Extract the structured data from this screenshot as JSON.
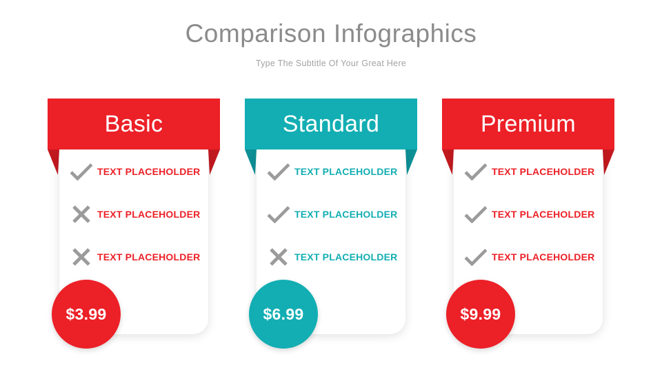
{
  "header": {
    "title": "Comparison Infographics",
    "subtitle": "Type The Subtitle Of Your Great Here"
  },
  "colors": {
    "red": "#ec2027",
    "red_dark": "#c2191f",
    "teal": "#12aeb3",
    "teal_dark": "#0d9096",
    "icon_gray": "#9b9b9b",
    "title_gray": "#8b8b8b",
    "subtitle_gray": "#a3a3a3"
  },
  "cards": [
    {
      "name": "Basic",
      "theme": "red",
      "price": "$3.99",
      "features": [
        {
          "icon": "check",
          "label": "TEXT PLACEHOLDER"
        },
        {
          "icon": "cross",
          "label": "TEXT PLACEHOLDER"
        },
        {
          "icon": "cross",
          "label": "TEXT PLACEHOLDER"
        }
      ]
    },
    {
      "name": "Standard",
      "theme": "teal",
      "price": "$6.99",
      "features": [
        {
          "icon": "check",
          "label": "TEXT PLACEHOLDER"
        },
        {
          "icon": "check",
          "label": "TEXT PLACEHOLDER"
        },
        {
          "icon": "cross",
          "label": "TEXT PLACEHOLDER"
        }
      ]
    },
    {
      "name": "Premium",
      "theme": "red",
      "price": "$9.99",
      "features": [
        {
          "icon": "check",
          "label": "TEXT PLACEHOLDER"
        },
        {
          "icon": "check",
          "label": "TEXT PLACEHOLDER"
        },
        {
          "icon": "check",
          "label": "TEXT PLACEHOLDER"
        }
      ]
    }
  ]
}
